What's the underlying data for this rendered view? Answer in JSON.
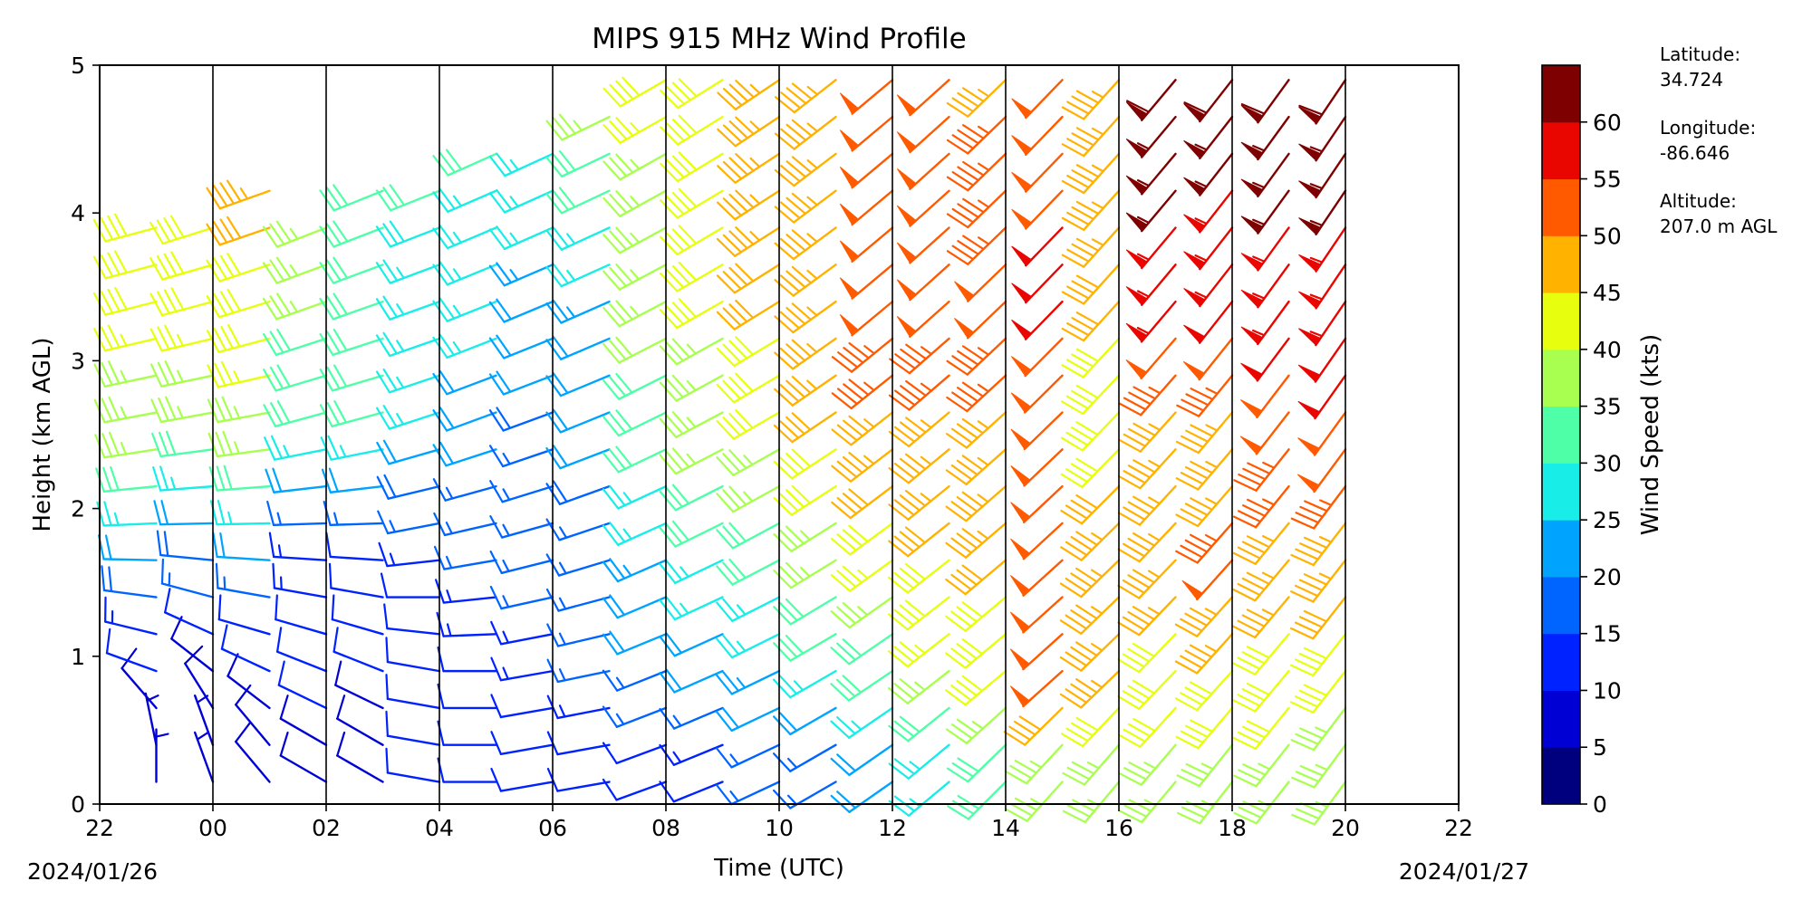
{
  "chart_data": {
    "type": "wind-barb-profile",
    "title": "MIPS 915 MHz Wind Profile",
    "xlabel": "Time (UTC)",
    "ylabel": "Height (km AGL)",
    "x_tick_labels": [
      "22",
      "00",
      "02",
      "04",
      "06",
      "08",
      "10",
      "12",
      "14",
      "16",
      "18",
      "20",
      "22"
    ],
    "x_range_hours_utc": [
      -2,
      22
    ],
    "y_tick_labels": [
      "0",
      "1",
      "2",
      "3",
      "4",
      "5"
    ],
    "ylim": [
      0,
      5
    ],
    "start_date_label": "2024/01/26",
    "end_date_label": "2024/01/27",
    "site_info": {
      "latitude_label": "Latitude:",
      "latitude_value": "34.724",
      "longitude_label": "Longitude:",
      "longitude_value": "-86.646",
      "altitude_label": "Altitude:",
      "altitude_value": "207.0 m AGL"
    },
    "colorbar": {
      "label": "Wind Speed (kts)",
      "tick_labels": [
        "0",
        "5",
        "10",
        "15",
        "20",
        "25",
        "30",
        "35",
        "40",
        "45",
        "50",
        "55",
        "60"
      ],
      "colors": [
        "#00007f",
        "#0000d4",
        "#0022ff",
        "#0064ff",
        "#00a4ff",
        "#19ede7",
        "#4fffa8",
        "#a8ff4f",
        "#e7ff0f",
        "#ffb200",
        "#ff5a00",
        "#e90600",
        "#7f0000"
      ]
    },
    "series": [
      {
        "time": -1.0,
        "profile": [
          [
            0.3,
            0,
            6
          ],
          [
            0.9,
            290,
            10
          ],
          [
            1.7,
            270,
            22
          ],
          [
            2.5,
            260,
            36
          ],
          [
            3.5,
            255,
            38
          ],
          [
            3.9,
            255,
            40
          ]
        ]
      },
      {
        "time": 0.0,
        "profile": [
          [
            0.5,
            340,
            7
          ],
          [
            1.0,
            300,
            9
          ],
          [
            1.8,
            270,
            20
          ],
          [
            2.6,
            260,
            36
          ],
          [
            3.4,
            255,
            38
          ],
          [
            4.0,
            252,
            40
          ]
        ]
      },
      {
        "time": 1.0,
        "profile": [
          [
            0.4,
            320,
            8
          ],
          [
            1.0,
            290,
            10
          ],
          [
            1.8,
            270,
            22
          ],
          [
            2.6,
            260,
            36
          ],
          [
            3.5,
            252,
            40
          ],
          [
            4.3,
            250,
            44
          ]
        ]
      },
      {
        "time": 2.0,
        "profile": [
          [
            0.4,
            300,
            8
          ],
          [
            1.0,
            290,
            11
          ],
          [
            1.8,
            270,
            14
          ],
          [
            2.6,
            255,
            30
          ],
          [
            3.5,
            250,
            33
          ],
          [
            4.1,
            248,
            34
          ]
        ]
      },
      {
        "time": 3.0,
        "profile": [
          [
            0.4,
            300,
            8
          ],
          [
            1.0,
            290,
            10
          ],
          [
            1.8,
            270,
            13
          ],
          [
            2.6,
            255,
            28
          ],
          [
            3.5,
            250,
            30
          ],
          [
            4.2,
            248,
            30
          ]
        ]
      },
      {
        "time": 4.0,
        "profile": [
          [
            0.3,
            280,
            10
          ],
          [
            1.0,
            280,
            10
          ],
          [
            1.8,
            260,
            14
          ],
          [
            2.6,
            252,
            24
          ],
          [
            3.5,
            250,
            27
          ],
          [
            4.2,
            248,
            28
          ]
        ]
      },
      {
        "time": 5.0,
        "profile": [
          [
            0.3,
            270,
            12
          ],
          [
            1.0,
            270,
            12
          ],
          [
            1.8,
            258,
            15
          ],
          [
            2.6,
            250,
            20
          ],
          [
            3.5,
            248,
            26
          ],
          [
            4.4,
            246,
            28
          ]
        ]
      },
      {
        "time": 6.0,
        "profile": [
          [
            0.3,
            260,
            11
          ],
          [
            1.0,
            260,
            13
          ],
          [
            1.8,
            255,
            15
          ],
          [
            2.6,
            250,
            18
          ],
          [
            3.5,
            247,
            22
          ],
          [
            4.6,
            245,
            28
          ]
        ]
      },
      {
        "time": 7.0,
        "profile": [
          [
            0.3,
            260,
            12
          ],
          [
            1.0,
            258,
            15
          ],
          [
            1.8,
            252,
            16
          ],
          [
            2.6,
            248,
            20
          ],
          [
            3.5,
            246,
            23
          ],
          [
            4.7,
            244,
            34
          ]
        ]
      },
      {
        "time": 8.0,
        "profile": [
          [
            0.3,
            250,
            11
          ],
          [
            1.0,
            248,
            18
          ],
          [
            1.8,
            246,
            24
          ],
          [
            2.6,
            244,
            30
          ],
          [
            3.5,
            242,
            34
          ],
          [
            4.9,
            240,
            38
          ]
        ]
      },
      {
        "time": 9.0,
        "profile": [
          [
            0.3,
            248,
            12
          ],
          [
            1.0,
            246,
            20
          ],
          [
            1.8,
            244,
            28
          ],
          [
            2.6,
            242,
            34
          ],
          [
            3.5,
            240,
            38
          ],
          [
            4.9,
            238,
            40
          ]
        ]
      },
      {
        "time": 10.0,
        "profile": [
          [
            0.3,
            245,
            14
          ],
          [
            1.0,
            244,
            24
          ],
          [
            1.8,
            242,
            30
          ],
          [
            2.6,
            240,
            38
          ],
          [
            3.5,
            238,
            42
          ],
          [
            4.9,
            236,
            44
          ]
        ]
      },
      {
        "time": 11.0,
        "profile": [
          [
            0.3,
            240,
            15
          ],
          [
            1.0,
            240,
            28
          ],
          [
            1.8,
            238,
            34
          ],
          [
            2.6,
            236,
            42
          ],
          [
            3.5,
            234,
            44
          ],
          [
            4.9,
            232,
            46
          ]
        ]
      },
      {
        "time": 12.0,
        "profile": [
          [
            0.3,
            235,
            20
          ],
          [
            0.9,
            236,
            28
          ],
          [
            1.7,
            234,
            38
          ],
          [
            2.6,
            232,
            46
          ],
          [
            3.5,
            230,
            48
          ],
          [
            4.9,
            230,
            48
          ]
        ]
      },
      {
        "time": 13.0,
        "profile": [
          [
            0.3,
            230,
            24
          ],
          [
            0.9,
            232,
            36
          ],
          [
            1.6,
            232,
            40
          ],
          [
            2.6,
            230,
            46
          ],
          [
            3.5,
            228,
            48
          ],
          [
            4.9,
            228,
            48
          ]
        ]
      },
      {
        "time": 14.0,
        "profile": [
          [
            0.3,
            225,
            30
          ],
          [
            0.9,
            230,
            40
          ],
          [
            1.6,
            230,
            42
          ],
          [
            2.6,
            228,
            46
          ],
          [
            3.5,
            226,
            48
          ],
          [
            4.9,
            226,
            46
          ]
        ]
      },
      {
        "time": 15.0,
        "profile": [
          [
            0.3,
            222,
            34
          ],
          [
            0.9,
            228,
            48
          ],
          [
            1.5,
            228,
            48
          ],
          [
            2.6,
            226,
            48
          ],
          [
            3.5,
            224,
            52
          ],
          [
            4.9,
            224,
            48
          ]
        ]
      },
      {
        "time": 16.0,
        "profile": [
          [
            0.3,
            220,
            34
          ],
          [
            0.9,
            226,
            44
          ],
          [
            1.6,
            226,
            44
          ],
          [
            2.6,
            224,
            40
          ],
          [
            3.5,
            222,
            42
          ],
          [
            4.9,
            222,
            44
          ]
        ]
      },
      {
        "time": 17.0,
        "profile": [
          [
            0.3,
            220,
            34
          ],
          [
            0.9,
            224,
            40
          ],
          [
            1.6,
            224,
            44
          ],
          [
            2.6,
            222,
            44
          ],
          [
            3.5,
            220,
            54
          ],
          [
            4.9,
            220,
            58
          ]
        ]
      },
      {
        "time": 18.0,
        "profile": [
          [
            0.3,
            218,
            34
          ],
          [
            0.9,
            222,
            40
          ],
          [
            1.6,
            222,
            48
          ],
          [
            2.6,
            220,
            44
          ],
          [
            3.5,
            218,
            52
          ],
          [
            4.9,
            218,
            58
          ]
        ]
      },
      {
        "time": 19.0,
        "profile": [
          [
            0.3,
            218,
            34
          ],
          [
            0.9,
            220,
            40
          ],
          [
            1.6,
            220,
            44
          ],
          [
            2.6,
            218,
            48
          ],
          [
            3.5,
            216,
            54
          ],
          [
            4.9,
            216,
            58
          ]
        ]
      },
      {
        "time": 20.0,
        "profile": [
          [
            0.3,
            216,
            34
          ],
          [
            0.9,
            218,
            38
          ],
          [
            1.6,
            218,
            44
          ],
          [
            2.6,
            216,
            50
          ],
          [
            3.5,
            214,
            54
          ],
          [
            4.9,
            214,
            58
          ]
        ]
      }
    ],
    "grid": "vertical lines every 2 hours",
    "legend": "none"
  }
}
